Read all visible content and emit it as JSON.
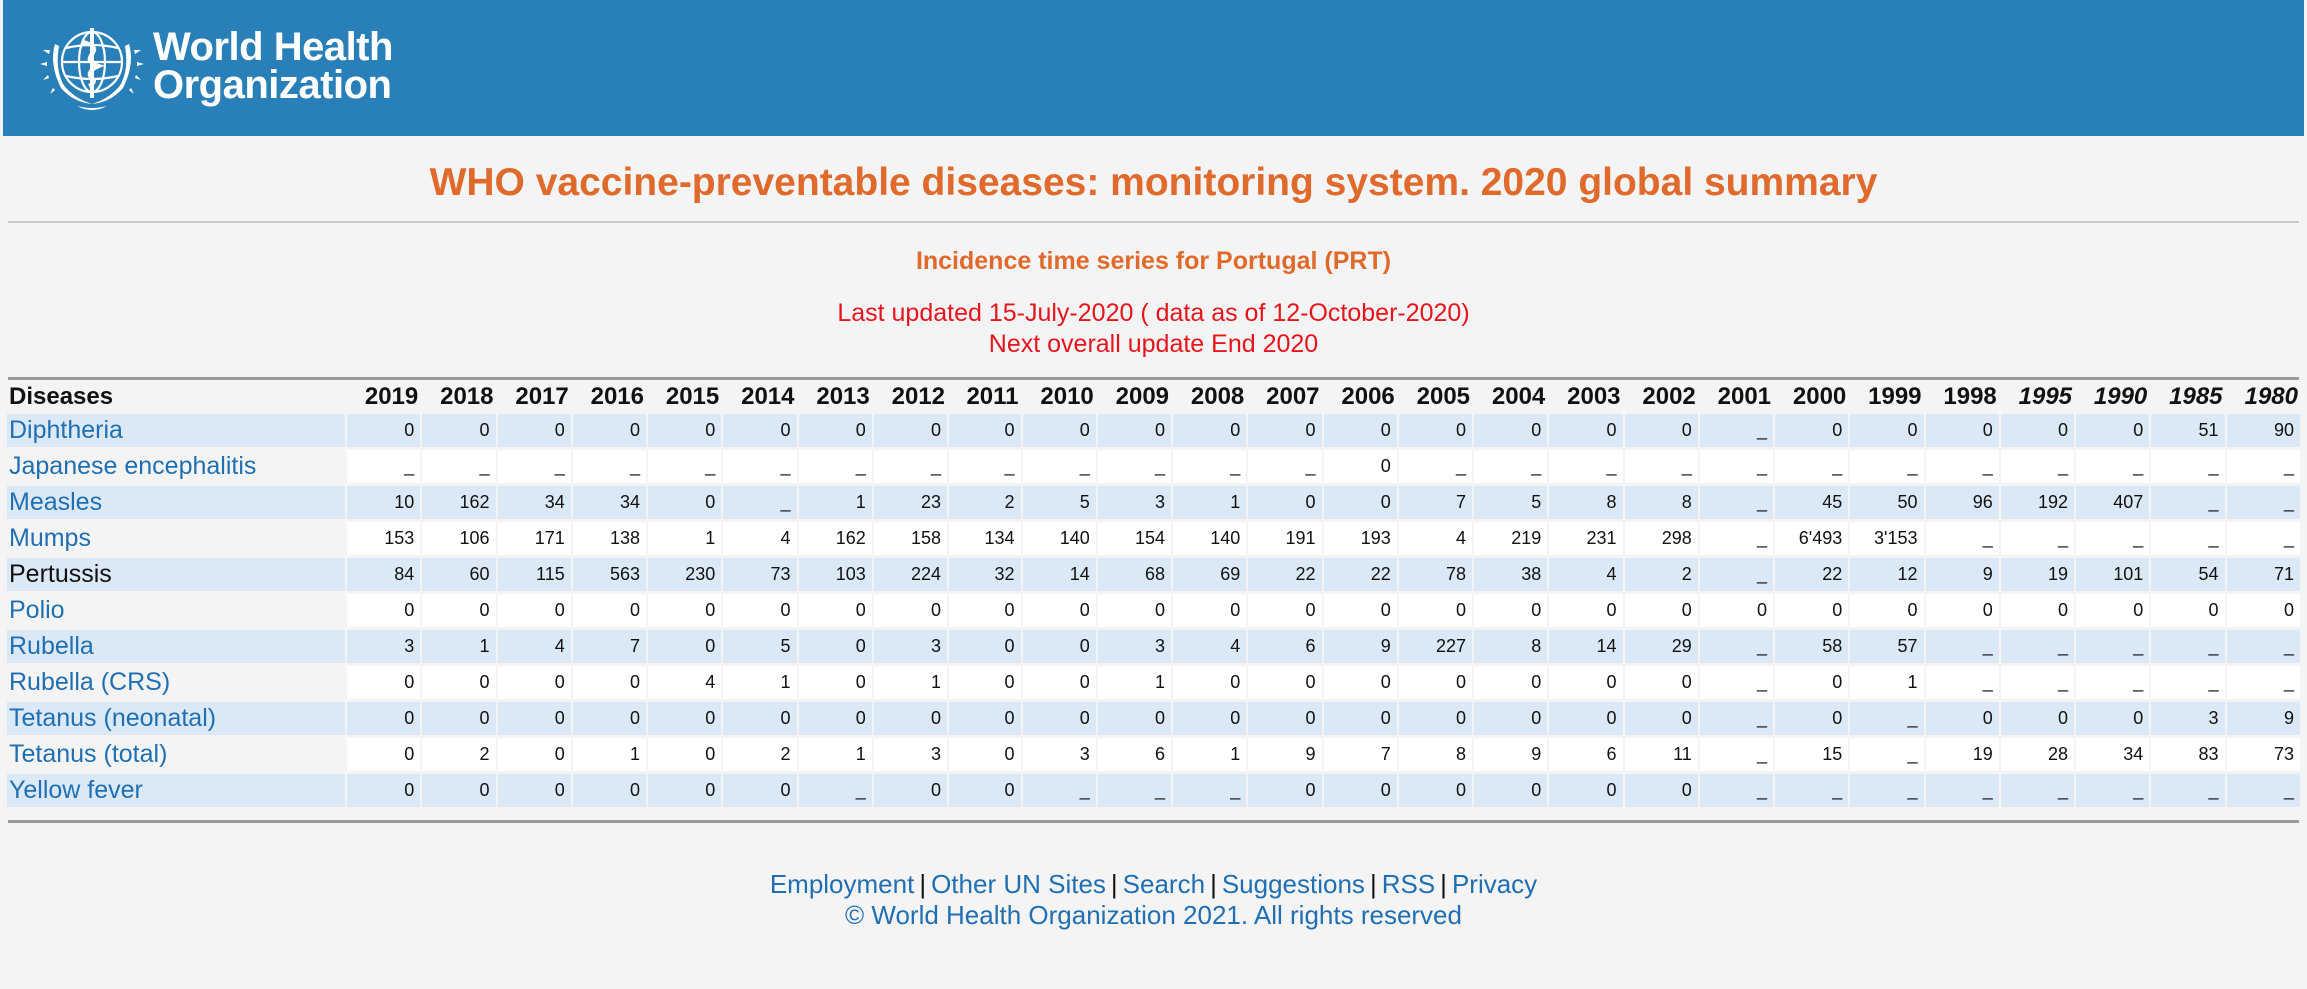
{
  "header": {
    "logo_line1": "World Health",
    "logo_line2": "Organization"
  },
  "title": "WHO vaccine-preventable diseases: monitoring system. 2020 global summary",
  "subtitle": "Incidence time series for Portugal  (PRT)",
  "updated_line1": "Last updated 15-July-2020 ( data as of 12-October-2020)",
  "updated_line2": "Next overall update End 2020",
  "table": {
    "corner": "Diseases",
    "years": [
      "2019",
      "2018",
      "2017",
      "2016",
      "2015",
      "2014",
      "2013",
      "2012",
      "2011",
      "2010",
      "2009",
      "2008",
      "2007",
      "2006",
      "2005",
      "2004",
      "2003",
      "2002",
      "2001",
      "2000",
      "1999",
      "1998",
      "1995",
      "1990",
      "1985",
      "1980"
    ],
    "italic_years": [
      "1995",
      "1990",
      "1985",
      "1980"
    ],
    "rows": [
      {
        "name": "Diphtheria",
        "link": true,
        "values": [
          "0",
          "0",
          "0",
          "0",
          "0",
          "0",
          "0",
          "0",
          "0",
          "0",
          "0",
          "0",
          "0",
          "0",
          "0",
          "0",
          "0",
          "0",
          "_",
          "0",
          "0",
          "0",
          "0",
          "0",
          "51",
          "90"
        ]
      },
      {
        "name": "Japanese encephalitis",
        "link": true,
        "values": [
          "_",
          "_",
          "_",
          "_",
          "_",
          "_",
          "_",
          "_",
          "_",
          "_",
          "_",
          "_",
          "_",
          "0",
          "_",
          "_",
          "_",
          "_",
          "_",
          "_",
          "_",
          "_",
          "_",
          "_",
          "_",
          "_"
        ]
      },
      {
        "name": "Measles",
        "link": true,
        "values": [
          "10",
          "162",
          "34",
          "34",
          "0",
          "_",
          "1",
          "23",
          "2",
          "5",
          "3",
          "1",
          "0",
          "0",
          "7",
          "5",
          "8",
          "8",
          "_",
          "45",
          "50",
          "96",
          "192",
          "407",
          "_",
          "_"
        ]
      },
      {
        "name": "Mumps",
        "link": true,
        "values": [
          "153",
          "106",
          "171",
          "138",
          "1",
          "4",
          "162",
          "158",
          "134",
          "140",
          "154",
          "140",
          "191",
          "193",
          "4",
          "219",
          "231",
          "298",
          "_",
          "6'493",
          "3'153",
          "_",
          "_",
          "_",
          "_",
          "_"
        ]
      },
      {
        "name": "Pertussis",
        "link": false,
        "values": [
          "84",
          "60",
          "115",
          "563",
          "230",
          "73",
          "103",
          "224",
          "32",
          "14",
          "68",
          "69",
          "22",
          "22",
          "78",
          "38",
          "4",
          "2",
          "_",
          "22",
          "12",
          "9",
          "19",
          "101",
          "54",
          "71"
        ]
      },
      {
        "name": "Polio",
        "link": true,
        "values": [
          "0",
          "0",
          "0",
          "0",
          "0",
          "0",
          "0",
          "0",
          "0",
          "0",
          "0",
          "0",
          "0",
          "0",
          "0",
          "0",
          "0",
          "0",
          "0",
          "0",
          "0",
          "0",
          "0",
          "0",
          "0",
          "0"
        ]
      },
      {
        "name": "Rubella",
        "link": true,
        "values": [
          "3",
          "1",
          "4",
          "7",
          "0",
          "5",
          "0",
          "3",
          "0",
          "0",
          "3",
          "4",
          "6",
          "9",
          "227",
          "8",
          "14",
          "29",
          "_",
          "58",
          "57",
          "_",
          "_",
          "_",
          "_",
          "_"
        ]
      },
      {
        "name": "Rubella (CRS)",
        "link": true,
        "values": [
          "0",
          "0",
          "0",
          "0",
          "4",
          "1",
          "0",
          "1",
          "0",
          "0",
          "1",
          "0",
          "0",
          "0",
          "0",
          "0",
          "0",
          "0",
          "_",
          "0",
          "1",
          "_",
          "_",
          "_",
          "_",
          "_"
        ]
      },
      {
        "name": "Tetanus (neonatal)",
        "link": true,
        "values": [
          "0",
          "0",
          "0",
          "0",
          "0",
          "0",
          "0",
          "0",
          "0",
          "0",
          "0",
          "0",
          "0",
          "0",
          "0",
          "0",
          "0",
          "0",
          "_",
          "0",
          "_",
          "0",
          "0",
          "0",
          "3",
          "9"
        ]
      },
      {
        "name": "Tetanus (total)",
        "link": true,
        "values": [
          "0",
          "2",
          "0",
          "1",
          "0",
          "2",
          "1",
          "3",
          "0",
          "3",
          "6",
          "1",
          "9",
          "7",
          "8",
          "9",
          "6",
          "11",
          "_",
          "15",
          "_",
          "19",
          "28",
          "34",
          "83",
          "73"
        ]
      },
      {
        "name": "Yellow fever",
        "link": true,
        "values": [
          "0",
          "0",
          "0",
          "0",
          "0",
          "0",
          "_",
          "0",
          "0",
          "_",
          "_",
          "_",
          "0",
          "0",
          "0",
          "0",
          "0",
          "0",
          "_",
          "_",
          "_",
          "_",
          "_",
          "_",
          "_",
          "_"
        ]
      }
    ]
  },
  "footer": {
    "links": [
      "Employment",
      "Other UN Sites",
      "Search",
      "Suggestions",
      "RSS",
      "Privacy"
    ],
    "separator": "|",
    "copyright": "© World Health Organization 2021. All rights reserved"
  },
  "colors": {
    "header_bg": "#2980b9",
    "title": "#e06a2c",
    "updated": "#e8141c",
    "link": "#1f6fb2",
    "row_shade": "#dbe9f7"
  },
  "icons": {
    "logo": "who-emblem-icon"
  }
}
